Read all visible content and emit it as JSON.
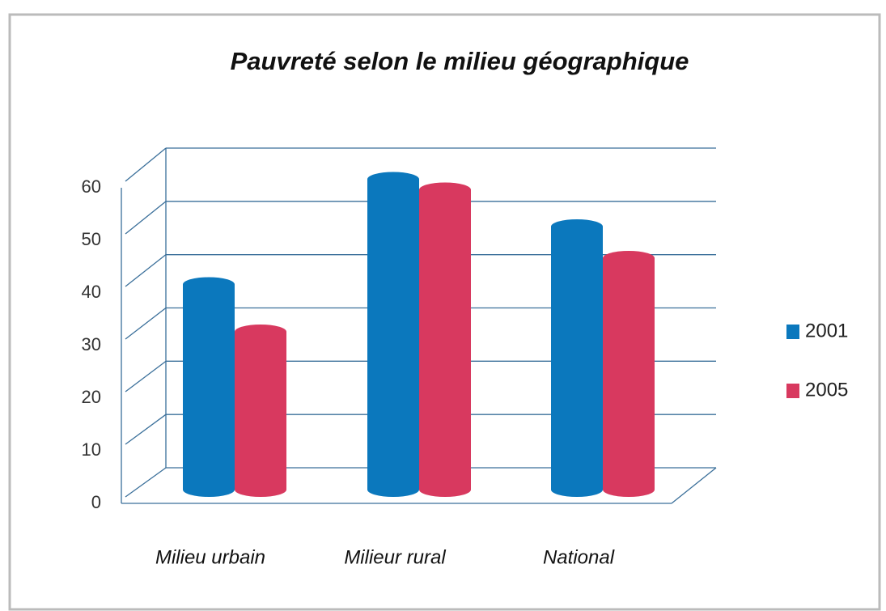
{
  "chart_data": {
    "type": "bar",
    "title": "Pauvreté selon le milieu géographique",
    "categories": [
      "Milieu urbain",
      "Milieur rural",
      "National"
    ],
    "series": [
      {
        "name": "2001",
        "color": "#0b78bd",
        "values": [
          39,
          59,
          50
        ]
      },
      {
        "name": "2005",
        "color": "#d8395f",
        "values": [
          30,
          57,
          44
        ]
      }
    ],
    "ylim": [
      0,
      60
    ],
    "yticks": [
      0,
      10,
      20,
      30,
      40,
      50,
      60
    ],
    "grid": true,
    "legend": "right"
  }
}
